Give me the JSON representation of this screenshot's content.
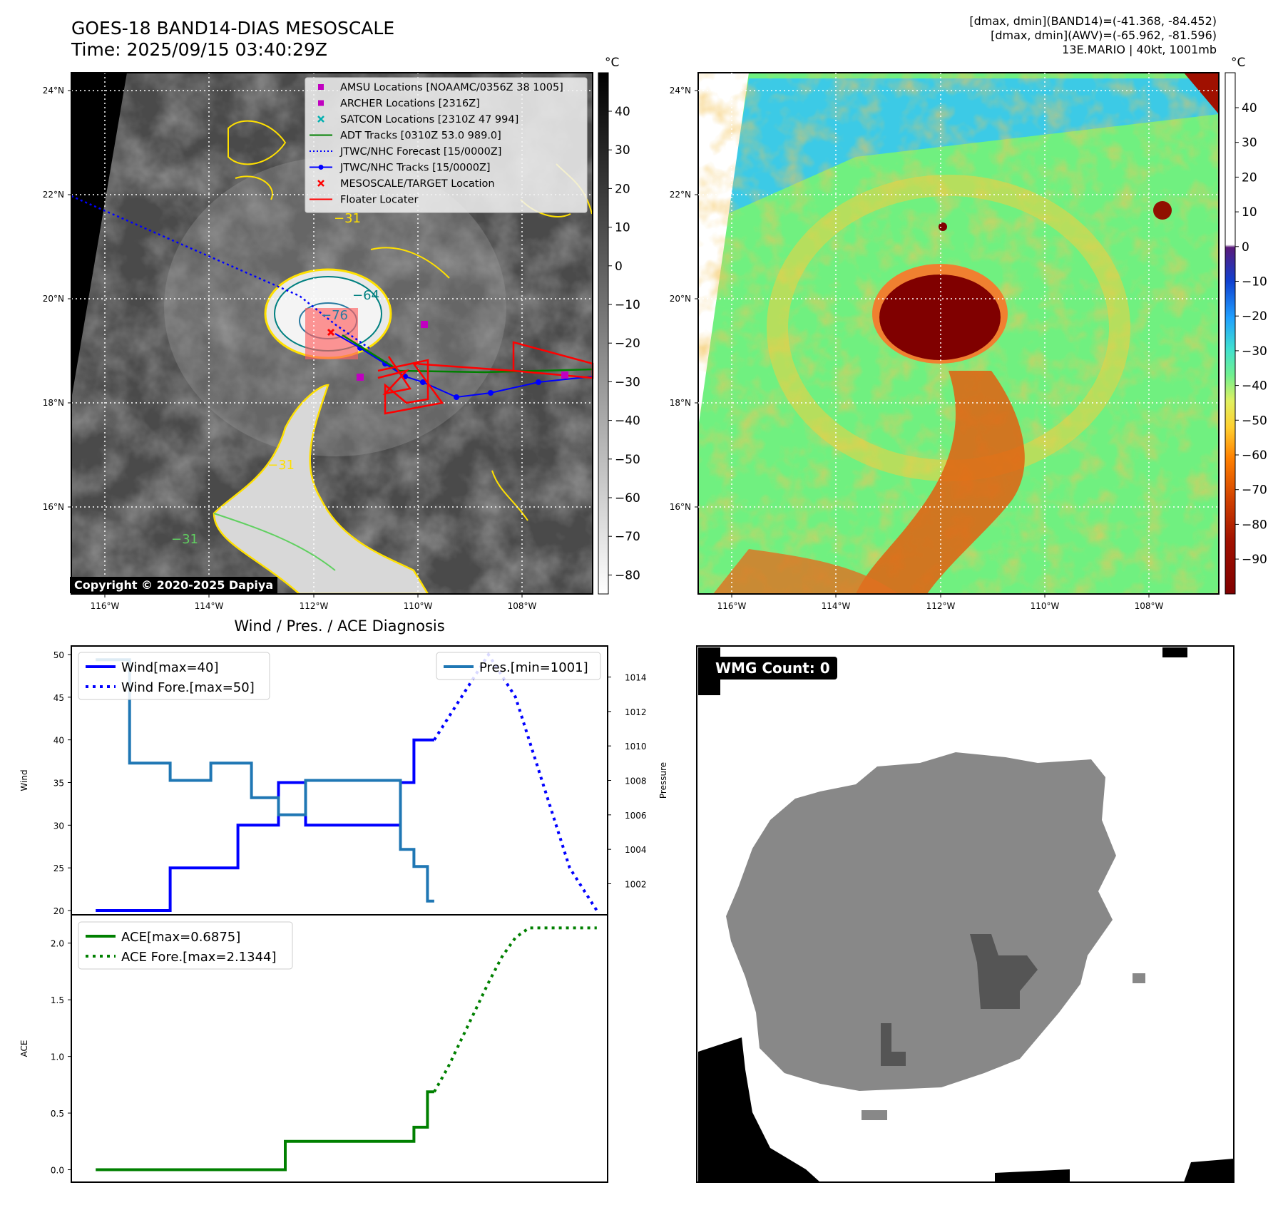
{
  "header": {
    "title_line1": "GOES-18 BAND14-DIAS MESOSCALE",
    "title_line2": "Time: 2025/09/15 03:40:29Z",
    "info_line1": "[dmax, dmin](BAND14)=(-41.368, -84.452)",
    "info_line2": "[dmax, dmin](AWV)=(-65.962, -81.596)",
    "info_line3": "13E.MARIO | 40kt, 1001mb"
  },
  "maps": {
    "lat_ticks": [
      "24°N",
      "22°N",
      "20°N",
      "18°N",
      "16°N"
    ],
    "lon_ticks": [
      "116°W",
      "114°W",
      "112°W",
      "110°W",
      "108°W"
    ],
    "unit": "°C",
    "copyright": "Copyright © 2020-2025 Dapiya",
    "cbar1_ticks": [
      "40",
      "30",
      "20",
      "10",
      "0",
      "−10",
      "−20",
      "−30",
      "−40",
      "−50",
      "−60",
      "−70",
      "−80"
    ],
    "cbar2_ticks": [
      "40",
      "30",
      "20",
      "10",
      "0",
      "−10",
      "−20",
      "−30",
      "−40",
      "−50",
      "−60",
      "−70",
      "−80",
      "−90"
    ],
    "contour_labels": [
      "−31",
      "−64",
      "−76",
      "−31",
      "−31"
    ],
    "legend": [
      {
        "label": "AMSU Locations [NOAAMC/0356Z 38 1005]",
        "color": "#c000c0",
        "marker": "square"
      },
      {
        "label": "ARCHER Locations [2316Z]",
        "color": "#c000c0",
        "marker": "square"
      },
      {
        "label": "SATCON Locations [2310Z 47 994]",
        "color": "#00b0b0",
        "marker": "x"
      },
      {
        "label": "ADT Tracks [0310Z 53.0 989.0]",
        "color": "#008000",
        "marker": "line"
      },
      {
        "label": "JTWC/NHC Forecast [15/0000Z]",
        "color": "#0000ff",
        "marker": "dotted"
      },
      {
        "label": "JTWC/NHC Tracks [15/0000Z]",
        "color": "#0000ff",
        "marker": "line-dot"
      },
      {
        "label": "MESOSCALE/TARGET Location",
        "color": "#ff0000",
        "marker": "x"
      },
      {
        "label": "Floater Locater",
        "color": "#ff0000",
        "marker": "line"
      }
    ]
  },
  "chart_data": [
    {
      "type": "line",
      "title": "Wind / Pres. / ACE Diagnosis",
      "ylabel": "Wind",
      "ylabel_right": "Pressure",
      "ylim": [
        19.5,
        51
      ],
      "ylim_right": [
        1000.2,
        1015.8
      ],
      "yticks": [
        20,
        25,
        30,
        35,
        40,
        45,
        50
      ],
      "yticks_right": [
        1002,
        1004,
        1006,
        1008,
        1010,
        1012,
        1014
      ],
      "xlim": [
        -1.8,
        37.8
      ],
      "series": [
        {
          "name": "Wind[max=40]",
          "axis": "left",
          "style": "solid",
          "color": "#0000ff",
          "x": [
            0,
            1,
            2,
            3,
            4,
            5,
            6,
            7,
            8,
            9,
            10,
            11,
            12,
            13,
            14,
            15,
            16,
            17,
            18,
            19,
            20,
            21,
            22,
            23,
            24,
            25
          ],
          "values": [
            20,
            20,
            20,
            20,
            20,
            20,
            25,
            25,
            25,
            25,
            25,
            30,
            30,
            30,
            35,
            35,
            30,
            30,
            30,
            30,
            30,
            30,
            30,
            35,
            40,
            40
          ]
        },
        {
          "name": "Wind Fore.[max=50]",
          "axis": "left",
          "style": "dotted",
          "color": "#0000ff",
          "x": [
            25,
            26,
            27,
            28,
            29,
            30,
            31,
            32,
            33,
            34,
            35,
            36,
            37
          ],
          "values": [
            40,
            42.5,
            45,
            47.5,
            50,
            47.5,
            45,
            40,
            35,
            30,
            25,
            22.5,
            20
          ]
        },
        {
          "name": "Pres.[min=1001]",
          "axis": "right",
          "style": "solid",
          "color": "#1f77b4",
          "x": [
            0,
            1,
            2,
            3,
            4,
            5,
            6,
            7,
            8,
            9,
            10,
            11,
            12,
            13,
            14,
            15,
            16,
            17,
            18,
            19,
            20,
            21,
            22,
            23,
            24,
            25
          ],
          "values": [
            1015,
            1015,
            1015,
            1009,
            1009,
            1009,
            1008,
            1008,
            1008,
            1009,
            1009,
            1009,
            1007,
            1007,
            1006,
            1006,
            1008,
            1008,
            1008,
            1008,
            1008,
            1008,
            1008,
            1004,
            1003,
            1001
          ]
        }
      ]
    },
    {
      "type": "line",
      "ylabel": "ACE",
      "ylim": [
        -0.11,
        2.25
      ],
      "yticks": [
        0.0,
        0.5,
        1.0,
        1.5,
        2.0
      ],
      "xlim": [
        -1.8,
        37.8
      ],
      "series": [
        {
          "name": "ACE[max=0.6875]",
          "style": "solid",
          "color": "#008000",
          "x": [
            0,
            13,
            15,
            23,
            24,
            25
          ],
          "values": [
            0,
            0,
            0.25,
            0.25,
            0.375,
            0.6875
          ]
        },
        {
          "name": "ACE Fore.[max=2.1344]",
          "style": "dotted",
          "color": "#008000",
          "x": [
            25,
            26,
            27,
            28,
            29,
            30,
            31,
            32,
            33,
            37
          ],
          "values": [
            0.6875,
            0.9,
            1.15,
            1.4,
            1.65,
            1.88,
            2.05,
            2.1344,
            2.1344,
            2.1344
          ]
        }
      ]
    }
  ],
  "wmg": {
    "count_label": "WMG Count: 0"
  }
}
